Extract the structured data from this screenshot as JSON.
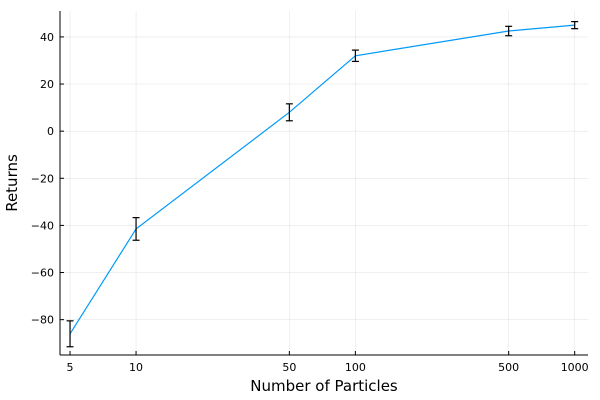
{
  "chart_data": {
    "type": "line",
    "title": "",
    "xlabel": "Number of Particles",
    "ylabel": "Returns",
    "x_scale": "log10",
    "xlim": [
      4.5,
      1150
    ],
    "ylim": [
      -95,
      51
    ],
    "grid": true,
    "legend": "none",
    "line_color": "#009AFA",
    "errorbar_color": "#000000",
    "x_ticks": [
      5,
      10,
      50,
      100,
      500,
      1000
    ],
    "x_tick_labels": [
      "5",
      "10",
      "50",
      "100",
      "500",
      "1000"
    ],
    "y_ticks": [
      -80,
      -60,
      -40,
      -20,
      0,
      20,
      40
    ],
    "y_tick_labels": [
      "−80",
      "−60",
      "−40",
      "−20",
      "0",
      "20",
      "40"
    ],
    "series": [
      {
        "x": [
          5,
          10,
          50,
          100,
          500,
          1000
        ],
        "y": [
          -86,
          -41.5,
          8,
          32,
          42.5,
          45
        ],
        "yerr": [
          5.5,
          4.8,
          3.6,
          2.4,
          2.0,
          1.5
        ]
      }
    ]
  }
}
